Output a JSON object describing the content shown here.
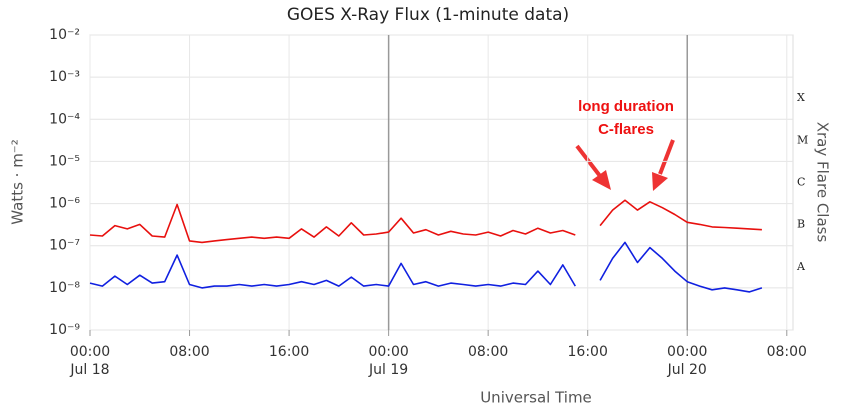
{
  "chart_data": {
    "type": "line",
    "title": "GOES X-Ray Flux (1-minute data)",
    "x_label": "Universal Time",
    "y_label": "Watts · m⁻²",
    "y2_label": "Xray Flare Class",
    "log_y": true,
    "grid": true,
    "xlim": [
      0,
      56.5
    ],
    "ylim": [
      1e-09,
      0.01
    ],
    "xticks": [
      {
        "value": 0,
        "label": "00:00"
      },
      {
        "value": 8,
        "label": "08:00"
      },
      {
        "value": 16,
        "label": "16:00"
      },
      {
        "value": 24,
        "label": "00:00"
      },
      {
        "value": 32,
        "label": "08:00"
      },
      {
        "value": 40,
        "label": "16:00"
      },
      {
        "value": 48,
        "label": "00:00"
      },
      {
        "value": 56,
        "label": "08:00"
      }
    ],
    "day_markers": [
      {
        "value": 0,
        "label": "Jul 18"
      },
      {
        "value": 24,
        "label": "Jul 19"
      },
      {
        "value": 48,
        "label": "Jul 20"
      }
    ],
    "yticks": [
      {
        "value": 1e-09,
        "label": "10⁻⁹"
      },
      {
        "value": 1e-08,
        "label": "10⁻⁸"
      },
      {
        "value": 1e-07,
        "label": "10⁻⁷"
      },
      {
        "value": 1e-06,
        "label": "10⁻⁶"
      },
      {
        "value": 1e-05,
        "label": "10⁻⁵"
      },
      {
        "value": 0.0001,
        "label": "10⁻⁴"
      },
      {
        "value": 0.001,
        "label": "10⁻³"
      },
      {
        "value": 0.01,
        "label": "10⁻²"
      }
    ],
    "flare_classes": [
      {
        "value": 1e-08,
        "label": "A"
      },
      {
        "value": 1e-07,
        "label": "B"
      },
      {
        "value": 1e-06,
        "label": "C"
      },
      {
        "value": 1e-05,
        "label": "M"
      },
      {
        "value": 0.0001,
        "label": "X"
      }
    ],
    "annotation": {
      "lines": [
        "long duration",
        "C-flares"
      ],
      "color": "#ee1111"
    },
    "x": [
      0,
      1,
      2,
      3,
      4,
      5,
      6,
      7,
      8,
      9,
      10,
      11,
      12,
      13,
      14,
      15,
      16,
      17,
      18,
      19,
      20,
      21,
      22,
      23,
      24,
      25,
      26,
      27,
      28,
      29,
      30,
      31,
      32,
      33,
      34,
      35,
      36,
      37,
      38,
      39,
      40,
      41,
      42,
      43,
      44,
      45,
      46,
      47,
      48,
      49,
      50,
      51,
      52,
      53,
      54
    ],
    "series": [
      {
        "color": "#e8100e",
        "values": [
          1.8e-07,
          1.7e-07,
          3e-07,
          2.5e-07,
          3.2e-07,
          1.7e-07,
          1.6e-07,
          9.5e-07,
          1.3e-07,
          1.2e-07,
          1.3e-07,
          1.4e-07,
          1.5e-07,
          1.6e-07,
          1.5e-07,
          1.6e-07,
          1.5e-07,
          2.5e-07,
          1.6e-07,
          2.8e-07,
          1.7e-07,
          3.5e-07,
          1.8e-07,
          1.9e-07,
          2.1e-07,
          4.5e-07,
          2e-07,
          2.4e-07,
          1.8e-07,
          2.2e-07,
          1.9e-07,
          1.8e-07,
          2.1e-07,
          1.7e-07,
          2.3e-07,
          1.9e-07,
          2.6e-07,
          2e-07,
          2.3e-07,
          1.8e-07,
          null,
          3e-07,
          7e-07,
          1.2e-06,
          7e-07,
          1.1e-06,
          8e-07,
          5.5e-07,
          3.6e-07,
          3.2e-07,
          2.8e-07,
          2.7e-07,
          2.6e-07,
          2.5e-07,
          2.4e-07
        ]
      },
      {
        "color": "#1020e0",
        "values": [
          1.3e-08,
          1.1e-08,
          1.9e-08,
          1.2e-08,
          2e-08,
          1.3e-08,
          1.4e-08,
          6e-08,
          1.2e-08,
          1e-08,
          1.1e-08,
          1.1e-08,
          1.2e-08,
          1.1e-08,
          1.2e-08,
          1.1e-08,
          1.2e-08,
          1.4e-08,
          1.2e-08,
          1.5e-08,
          1.1e-08,
          1.8e-08,
          1.1e-08,
          1.2e-08,
          1.1e-08,
          3.8e-08,
          1.2e-08,
          1.4e-08,
          1.1e-08,
          1.3e-08,
          1.2e-08,
          1.1e-08,
          1.2e-08,
          1.1e-08,
          1.3e-08,
          1.2e-08,
          2.5e-08,
          1.2e-08,
          3.5e-08,
          1.1e-08,
          null,
          1.5e-08,
          5e-08,
          1.2e-07,
          4e-08,
          9e-08,
          5e-08,
          2.5e-08,
          1.4e-08,
          1.1e-08,
          9e-09,
          1e-08,
          9e-09,
          8e-09,
          1e-08
        ]
      }
    ]
  }
}
